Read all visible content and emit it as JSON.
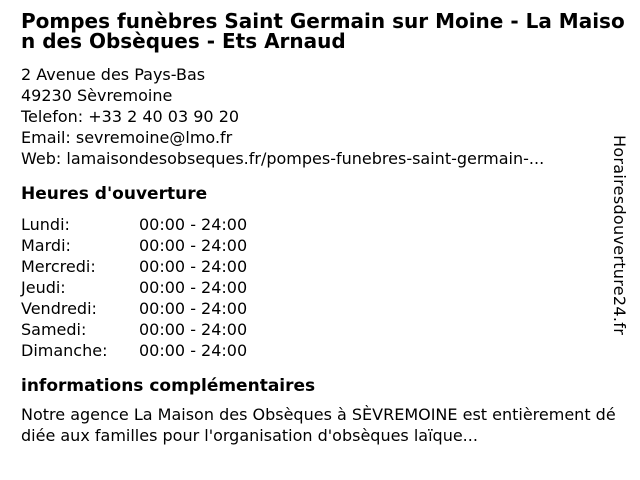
{
  "colors": {
    "background": "#ffffff",
    "text": "#000000"
  },
  "header": {
    "title": "Pompes funèbres Saint Germain sur Moine - La Maison des Obsèques - Ets Arnaud"
  },
  "contact": {
    "address_line1": "2 Avenue des Pays-Bas",
    "address_line2": "49230 Sèvremoine",
    "phone_label": "Telefon:",
    "phone_value": "+33 2 40 03 90 20",
    "email_label": "Email:",
    "email_value": "sevremoine@lmo.fr",
    "web_label": "Web:",
    "web_value": "lamaisondesobseques.fr/pompes-funebres-saint-germain-..."
  },
  "opening_hours": {
    "heading": "Heures d'ouverture",
    "rows": [
      {
        "day": "Lundi:",
        "time": "00:00 - 24:00"
      },
      {
        "day": "Mardi:",
        "time": "00:00 - 24:00"
      },
      {
        "day": "Mercredi:",
        "time": "00:00 - 24:00"
      },
      {
        "day": "Jeudi:",
        "time": "00:00 - 24:00"
      },
      {
        "day": "Vendredi:",
        "time": "00:00 - 24:00"
      },
      {
        "day": "Samedi:",
        "time": "00:00 - 24:00"
      },
      {
        "day": "Dimanche:",
        "time": "00:00 - 24:00"
      }
    ]
  },
  "additional_info": {
    "heading": "informations complémentaires",
    "text": "Notre agence La Maison des Obsèques à SÈVREMOINE est entièrement dédiée aux familles pour l'organisation d'obsèques laïque..."
  },
  "watermark": {
    "site": "Horairesdouverture24.fr"
  }
}
